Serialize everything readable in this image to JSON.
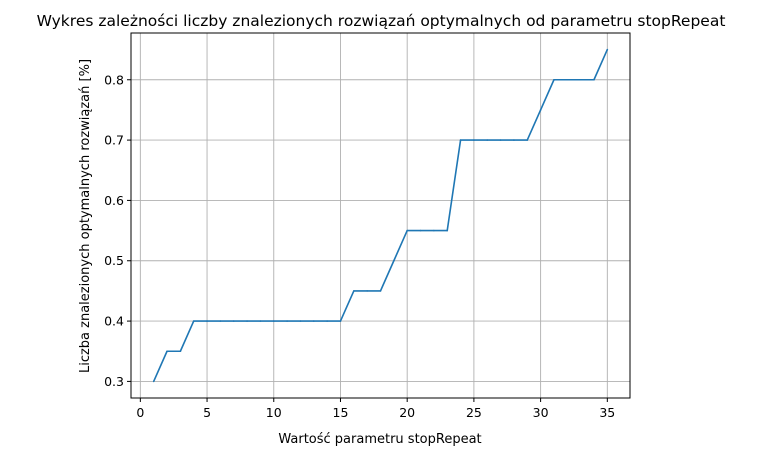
{
  "chart_data": {
    "type": "line",
    "title": "Wykres zależności liczby znalezionych rozwiązań optymalnych od parametru stopRepeat",
    "xlabel": "Wartość parametru stopRepeat",
    "ylabel": "Liczba znalezionych optymalnych rozwiązań [%]",
    "xlim": [
      -0.7,
      36.7
    ],
    "ylim": [
      0.2725,
      0.8775
    ],
    "xticks": [
      0,
      5,
      10,
      15,
      20,
      25,
      30,
      35
    ],
    "yticks": [
      0.3,
      0.4,
      0.5,
      0.6,
      0.7,
      0.8
    ],
    "xtick_labels": [
      "0",
      "5",
      "10",
      "15",
      "20",
      "25",
      "30",
      "35"
    ],
    "ytick_labels": [
      "0.3",
      "0.4",
      "0.5",
      "0.6",
      "0.7",
      "0.8"
    ],
    "grid": true,
    "series": [
      {
        "color": "#1f77b4",
        "x": [
          1,
          2,
          3,
          4,
          5,
          6,
          7,
          8,
          9,
          10,
          11,
          12,
          13,
          14,
          15,
          16,
          17,
          18,
          19,
          20,
          21,
          22,
          23,
          24,
          25,
          26,
          27,
          28,
          29,
          30,
          31,
          32,
          33,
          34,
          35
        ],
        "y": [
          0.3,
          0.35,
          0.35,
          0.4,
          0.4,
          0.4,
          0.4,
          0.4,
          0.4,
          0.4,
          0.4,
          0.4,
          0.4,
          0.4,
          0.4,
          0.45,
          0.45,
          0.45,
          0.5,
          0.55,
          0.55,
          0.55,
          0.55,
          0.7,
          0.7,
          0.7,
          0.7,
          0.7,
          0.7,
          0.75,
          0.8,
          0.8,
          0.8,
          0.8,
          0.85
        ]
      }
    ]
  }
}
